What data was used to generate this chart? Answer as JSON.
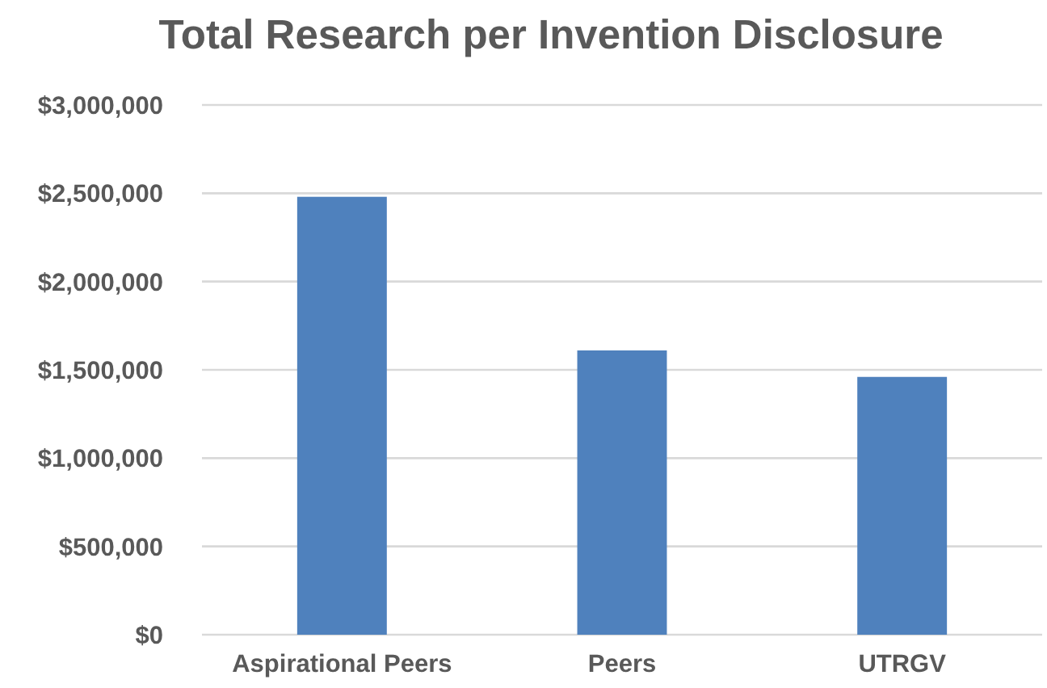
{
  "chart_data": {
    "type": "bar",
    "title": "Total Research per Invention Disclosure",
    "categories": [
      "Aspirational Peers",
      "Peers",
      "UTRGV"
    ],
    "values": [
      2480000,
      1610000,
      1460000
    ],
    "color": "#4f81bd",
    "ylim": [
      0,
      3000000
    ],
    "yticks": [
      {
        "value": 0,
        "label": "$0"
      },
      {
        "value": 500000,
        "label": "$500,000"
      },
      {
        "value": 1000000,
        "label": "$1,000,000"
      },
      {
        "value": 1500000,
        "label": "$1,500,000"
      },
      {
        "value": 2000000,
        "label": "$2,000,000"
      },
      {
        "value": 2500000,
        "label": "$2,500,000"
      },
      {
        "value": 3000000,
        "label": "$3,000,000"
      }
    ],
    "grid": "y"
  }
}
